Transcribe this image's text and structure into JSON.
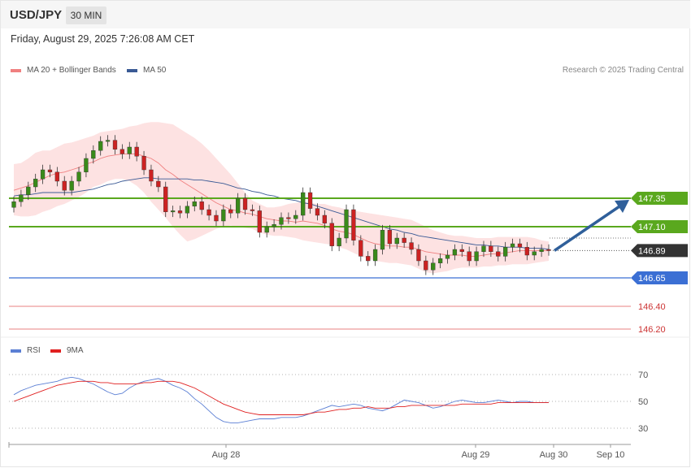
{
  "header": {
    "symbol": "USD/JPY",
    "timeframe": "30 MIN",
    "datetime": "Friday, August 29, 2025 7:26:08 AM CET"
  },
  "legend": {
    "ma20": "MA 20 + Bollinger Bands",
    "ma50": "MA 50",
    "ma20_color": "#f08080",
    "ma50_color": "#3a5a95",
    "copyright": "Research © 2025 Trading Central"
  },
  "chart_data": {
    "type": "candlestick",
    "y_range": [
      146.125,
      147.665
    ],
    "levels": [
      {
        "value": 147.35,
        "label": "147.35",
        "kind": "resistance",
        "color": "#5aa81e"
      },
      {
        "value": 147.1,
        "label": "147.10",
        "kind": "resistance",
        "color": "#5aa81e"
      },
      {
        "value": 146.89,
        "label": "146.89",
        "kind": "last",
        "color": "#333333"
      },
      {
        "value": 146.65,
        "label": "146.65",
        "kind": "support",
        "color": "#3b6fd4"
      },
      {
        "value": 146.4,
        "label": "146.40",
        "kind": "support",
        "color": "#cc3333"
      },
      {
        "value": 146.2,
        "label": "146.20",
        "kind": "support",
        "color": "#cc3333"
      }
    ],
    "arrow": {
      "from": 146.89,
      "to": 147.35,
      "color": "#2f5f9a"
    },
    "x_labels": [
      "Aug 28",
      "Aug 29",
      "Aug 30",
      "Sep 10"
    ],
    "closes": [
      147.32,
      147.38,
      147.45,
      147.52,
      147.6,
      147.58,
      147.5,
      147.42,
      147.5,
      147.58,
      147.7,
      147.77,
      147.85,
      147.86,
      147.78,
      147.74,
      147.8,
      147.72,
      147.6,
      147.5,
      147.45,
      147.23,
      147.24,
      147.22,
      147.28,
      147.32,
      147.25,
      147.2,
      147.15,
      147.25,
      147.22,
      147.35,
      147.25,
      147.24,
      147.05,
      147.1,
      147.12,
      147.18,
      147.17,
      147.2,
      147.4,
      147.26,
      147.2,
      147.13,
      146.93,
      147.0,
      147.25,
      146.98,
      146.84,
      146.8,
      146.9,
      147.07,
      146.95,
      147.0,
      146.96,
      146.9,
      146.8,
      146.72,
      146.78,
      146.82,
      146.85,
      146.9,
      146.88,
      146.8,
      146.88,
      146.93,
      146.88,
      146.84,
      146.92,
      146.95,
      146.92,
      146.85,
      146.88,
      146.9,
      146.89
    ],
    "ma20": [
      147.42,
      147.44,
      147.46,
      147.49,
      147.52,
      147.55,
      147.57,
      147.58,
      147.6,
      147.62,
      147.65,
      147.67,
      147.7,
      147.72,
      147.73,
      147.74,
      147.74,
      147.74,
      147.72,
      147.7,
      147.66,
      147.6,
      147.56,
      147.51,
      147.47,
      147.43,
      147.39,
      147.35,
      147.31,
      147.28,
      147.25,
      147.24,
      147.22,
      147.21,
      147.19,
      147.17,
      147.16,
      147.15,
      147.15,
      147.14,
      147.15,
      147.14,
      147.13,
      147.11,
      147.08,
      147.06,
      147.05,
      147.03,
      147.0,
      146.97,
      146.95,
      146.94,
      146.93,
      146.93,
      146.92,
      146.92,
      146.9,
      146.88,
      146.87,
      146.86,
      146.85,
      146.85,
      146.85,
      146.84,
      146.84,
      146.85,
      146.86,
      146.86,
      146.87,
      146.88,
      146.89,
      146.89,
      146.89,
      146.89,
      146.89
    ],
    "ma50": [
      147.37,
      147.38,
      147.38,
      147.39,
      147.4,
      147.4,
      147.4,
      147.4,
      147.4,
      147.41,
      147.42,
      147.43,
      147.45,
      147.47,
      147.48,
      147.5,
      147.51,
      147.52,
      147.53,
      147.53,
      147.52,
      147.52,
      147.52,
      147.52,
      147.52,
      147.51,
      147.51,
      147.5,
      147.49,
      147.48,
      147.46,
      147.44,
      147.43,
      147.41,
      147.4,
      147.38,
      147.37,
      147.35,
      147.34,
      147.33,
      147.31,
      147.3,
      147.28,
      147.26,
      147.24,
      147.22,
      147.2,
      147.18,
      147.16,
      147.14,
      147.12,
      147.1,
      147.08,
      147.07,
      147.05,
      147.04,
      147.02,
      147.01,
      147.0,
      146.99,
      146.98,
      146.97,
      146.96,
      146.95,
      146.94,
      146.94,
      146.93,
      146.93,
      146.92,
      146.92,
      146.92,
      146.91,
      146.91,
      146.91,
      146.9
    ],
    "bb_upper": [
      147.65,
      147.66,
      147.7,
      147.75,
      147.77,
      147.77,
      147.8,
      147.83,
      147.84,
      147.86,
      147.88,
      147.9,
      147.93,
      147.94,
      147.95,
      147.96,
      147.98,
      147.99,
      148.01,
      148.02,
      148.02,
      148.01,
      148.0,
      147.96,
      147.92,
      147.88,
      147.83,
      147.77,
      147.7,
      147.63,
      147.56,
      147.48,
      147.4,
      147.33,
      147.3,
      147.27,
      147.27,
      147.28,
      147.3,
      147.31,
      147.32,
      147.31,
      147.3,
      147.3,
      147.28,
      147.27,
      147.25,
      147.24,
      147.23,
      147.22,
      147.21,
      147.2,
      147.19,
      147.18,
      147.17,
      147.16,
      147.13,
      147.1,
      147.07,
      147.05,
      147.03,
      147.02,
      147.02,
      147.01,
      147.0,
      147.0,
      147.0,
      147.01,
      147.01,
      147.01,
      147.01,
      147.01,
      147.0,
      146.98,
      146.97
    ],
    "bb_lower": [
      147.2,
      147.19,
      147.19,
      147.2,
      147.23,
      147.25,
      147.28,
      147.3,
      147.33,
      147.36,
      147.4,
      147.45,
      147.47,
      147.5,
      147.52,
      147.52,
      147.5,
      147.46,
      147.4,
      147.32,
      147.25,
      147.18,
      147.1,
      147.03,
      146.97,
      146.99,
      147.02,
      147.05,
      147.08,
      147.1,
      147.11,
      147.1,
      147.09,
      147.08,
      147.05,
      147.03,
      147.02,
      147.02,
      147.01,
      147.0,
      146.98,
      146.97,
      146.96,
      146.95,
      146.94,
      146.92,
      146.9,
      146.87,
      146.84,
      146.82,
      146.8,
      146.79,
      146.78,
      146.78,
      146.77,
      146.76,
      146.73,
      146.7,
      146.69,
      146.7,
      146.71,
      146.73,
      146.74,
      146.74,
      146.74,
      146.75,
      146.75,
      146.76,
      146.76,
      146.77,
      146.77,
      146.77,
      146.78,
      146.79,
      146.8
    ],
    "rsi": {
      "ticks": [
        "70",
        "50",
        "30"
      ],
      "series": [
        {
          "name": "RSI",
          "color": "#5b7fd4",
          "values": [
            55,
            58,
            60,
            62,
            63,
            64,
            65,
            67,
            68,
            67,
            65,
            63,
            60,
            57,
            55,
            56,
            60,
            63,
            65,
            66,
            67,
            65,
            62,
            60,
            57,
            52,
            48,
            43,
            38,
            35,
            34,
            34,
            35,
            36,
            37,
            37,
            37,
            38,
            38,
            38,
            39,
            41,
            43,
            45,
            47,
            46,
            47,
            48,
            47,
            45,
            44,
            43,
            45,
            48,
            51,
            50,
            49,
            47,
            45,
            46,
            48,
            50,
            51,
            50,
            49,
            49,
            50,
            51,
            50,
            49,
            50,
            50,
            49,
            49,
            49
          ]
        },
        {
          "name": "9MA",
          "color": "#e02020",
          "values": [
            50,
            52,
            54,
            56,
            58,
            60,
            62,
            63,
            64,
            65,
            65,
            65,
            64,
            64,
            63,
            63,
            63,
            63,
            64,
            64,
            65,
            65,
            65,
            64,
            62,
            60,
            57,
            54,
            51,
            48,
            46,
            44,
            42,
            41,
            40,
            40,
            40,
            40,
            40,
            40,
            40,
            41,
            42,
            42,
            43,
            44,
            44,
            45,
            45,
            46,
            45,
            45,
            45,
            46,
            46,
            47,
            47,
            47,
            47,
            47,
            47,
            47,
            48,
            48,
            48,
            48,
            48,
            49,
            49,
            49,
            49,
            49,
            49,
            49,
            49
          ]
        }
      ]
    }
  }
}
